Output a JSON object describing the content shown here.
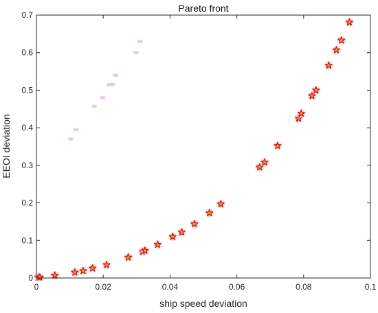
{
  "chart_data": {
    "type": "scatter",
    "title": "Pareto front",
    "xlabel": "ship speed deviation",
    "ylabel": "EEOI deviation",
    "xlim": [
      0,
      0.1
    ],
    "ylim": [
      0,
      0.7
    ],
    "xticks": [
      0,
      0.02,
      0.04,
      0.06,
      0.08,
      0.1
    ],
    "xtick_labels": [
      "0",
      "0.02",
      "0.04",
      "0.06",
      "0.08",
      "0.1"
    ],
    "yticks": [
      0,
      0.1,
      0.2,
      0.3,
      0.4,
      0.5,
      0.6,
      0.7
    ],
    "ytick_labels": [
      "0",
      "0.1",
      "0.2",
      "0.3",
      "0.4",
      "0.5",
      "0.6",
      "0.7"
    ],
    "grid": false,
    "marker": "star",
    "marker_colors": {
      "face": "#e8a020",
      "edge": "#cc1111",
      "halo": "#f2c4ea"
    },
    "series": [
      {
        "points": [
          [
            0.0005,
            0.002
          ],
          [
            0.001,
            0.002
          ],
          [
            0.0055,
            0.007
          ],
          [
            0.0115,
            0.015
          ],
          [
            0.014,
            0.019
          ],
          [
            0.0168,
            0.026
          ],
          [
            0.021,
            0.035
          ],
          [
            0.0275,
            0.055
          ],
          [
            0.0318,
            0.07
          ],
          [
            0.0325,
            0.073
          ],
          [
            0.0363,
            0.089
          ],
          [
            0.0408,
            0.11
          ],
          [
            0.0435,
            0.122
          ],
          [
            0.0473,
            0.144
          ],
          [
            0.0518,
            0.173
          ],
          [
            0.0552,
            0.197
          ],
          [
            0.0668,
            0.295
          ],
          [
            0.0683,
            0.308
          ],
          [
            0.0722,
            0.352
          ],
          [
            0.0785,
            0.425
          ],
          [
            0.0793,
            0.438
          ],
          [
            0.0825,
            0.485
          ],
          [
            0.0837,
            0.5
          ],
          [
            0.0875,
            0.566
          ],
          [
            0.0898,
            0.607
          ],
          [
            0.0913,
            0.633
          ],
          [
            0.0937,
            0.681
          ]
        ]
      }
    ],
    "ghost_points": [
      [
        0.0103,
        0.37
      ],
      [
        0.0118,
        0.395
      ],
      [
        0.0173,
        0.457
      ],
      [
        0.0198,
        0.48
      ],
      [
        0.0218,
        0.515
      ],
      [
        0.0228,
        0.515
      ],
      [
        0.0237,
        0.54
      ],
      [
        0.0298,
        0.6
      ],
      [
        0.031,
        0.63
      ]
    ]
  }
}
